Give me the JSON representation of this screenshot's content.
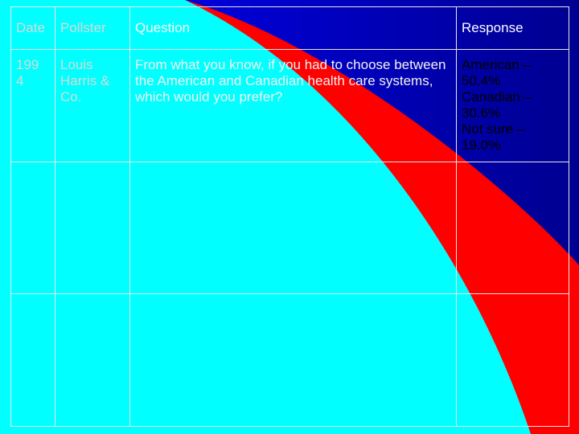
{
  "table": {
    "headers": [
      "Date",
      "Pollster",
      "Question",
      "Response"
    ],
    "row1": {
      "date": "199 4",
      "pollster": "Louis Harris & Co.",
      "question": "From what you know, if you had to choose between the American and Canadian health care systems, which would you prefer?",
      "response_lines": [
        "American –",
        "50.4%",
        "Canadian –",
        "30.6%",
        "Not sure –",
        "19.0%"
      ]
    }
  },
  "colors": {
    "background": "#0000a8",
    "shape_red": "#ff0000",
    "shape_cyan": "#00ffff"
  }
}
